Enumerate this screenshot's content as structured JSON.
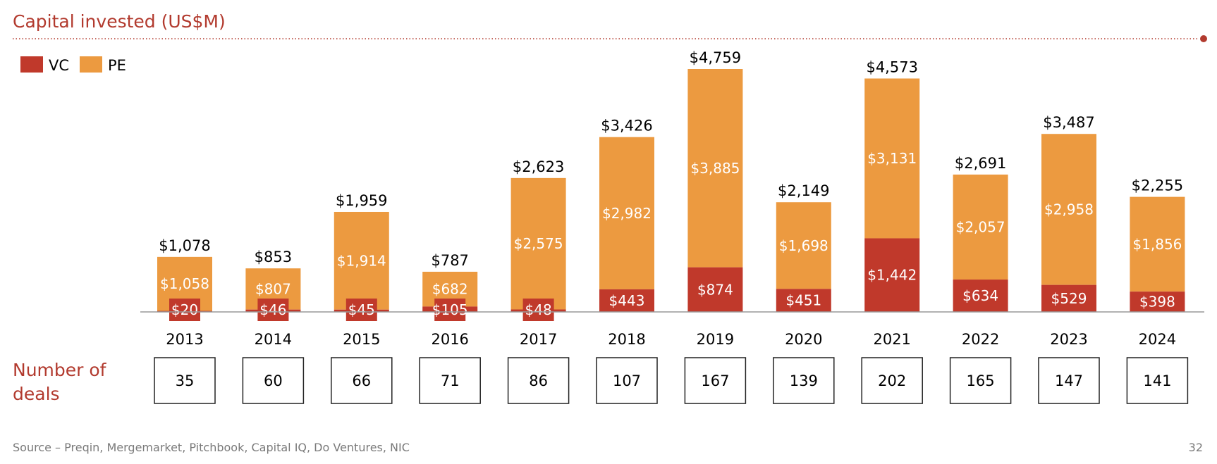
{
  "header": {
    "title": "Capital invested (US$M)"
  },
  "colors": {
    "vc": "#c0392b",
    "pe": "#ec9a40",
    "accent": "#b23a2e"
  },
  "chart_data": {
    "type": "bar",
    "stacked": true,
    "title": "Capital invested (US$M)",
    "categories": [
      "2013",
      "2014",
      "2015",
      "2016",
      "2017",
      "2018",
      "2019",
      "2020",
      "2021",
      "2022",
      "2023",
      "2024"
    ],
    "series": [
      {
        "name": "VC",
        "values": [
          20,
          46,
          45,
          105,
          48,
          443,
          874,
          451,
          1442,
          634,
          529,
          398
        ],
        "labels": [
          "$20",
          "$46",
          "$45",
          "$105",
          "$48",
          "$443",
          "$874",
          "$451",
          "$1,442",
          "$634",
          "$529",
          "$398"
        ]
      },
      {
        "name": "PE",
        "values": [
          1058,
          807,
          1914,
          682,
          2575,
          2982,
          3885,
          1698,
          3131,
          2057,
          2958,
          1856
        ],
        "labels": [
          "$1,058",
          "$807",
          "$1,914",
          "$682",
          "$2,575",
          "$2,982",
          "$3,885",
          "$1,698",
          "$3,131",
          "$2,057",
          "$2,958",
          "$1,856"
        ]
      }
    ],
    "totals": [
      1078,
      853,
      1959,
      787,
      2623,
      3426,
      4759,
      2149,
      4573,
      2691,
      3487,
      2255
    ],
    "total_labels": [
      "$1,078",
      "$853",
      "$1,959",
      "$787",
      "$2,623",
      "$3,426",
      "$4,759",
      "$2,149",
      "$4,573",
      "$2,691",
      "$3,487",
      "$2,255"
    ],
    "ylim": [
      0,
      5000
    ],
    "xlabel": "",
    "ylabel": "",
    "grid": false,
    "legend": "top-left"
  },
  "deals": {
    "title_line1": "Number of",
    "title_line2": "deals",
    "values": [
      "35",
      "60",
      "66",
      "71",
      "86",
      "107",
      "167",
      "139",
      "202",
      "165",
      "147",
      "141"
    ]
  },
  "footer": {
    "source": "Source – Preqin, Mergemarket, Pitchbook, Capital IQ, Do Ventures, NIC",
    "page_number": "32"
  }
}
